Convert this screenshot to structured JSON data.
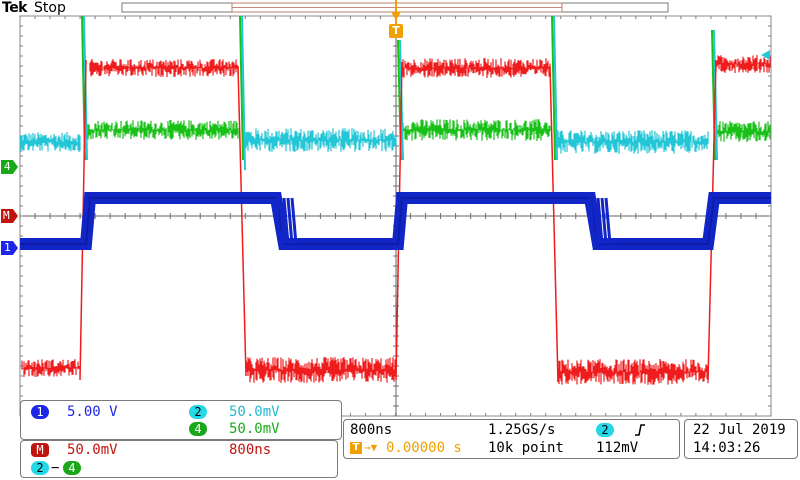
{
  "header": {
    "brand": "Tek",
    "status": "Stop"
  },
  "channel_markers": {
    "ch4": "4",
    "math": "M",
    "ch1": "1"
  },
  "trigger_marker": "T",
  "channels": {
    "ch1": {
      "id": "1",
      "scale": "5.00 V",
      "color": "#1e27e6"
    },
    "ch2": {
      "id": "2",
      "scale": "50.0mV",
      "color": "#25d8e8"
    },
    "ch4": {
      "id": "4",
      "scale": "50.0mV",
      "color": "#1aa81a"
    },
    "math": {
      "id": "M",
      "scale": "50.0mV",
      "timebase": "800ns",
      "color": "#c0150f",
      "expr_a": "2",
      "expr_op": "−",
      "expr_b": "4"
    }
  },
  "timebase_panel": {
    "horizontal_scale": "800ns",
    "sample_rate": "1.25GS/s",
    "trigger_position": "0.00000 s",
    "record_length": "10k point",
    "trigger_source": "2",
    "trigger_level": "112mV",
    "trigger_slope_icon": "rising-edge-icon"
  },
  "datetime": {
    "date": "22 Jul  2019",
    "time": "14:03:26"
  },
  "colors": {
    "trace_red": "#ee1c1c",
    "trace_green": "#18c018",
    "trace_cyan": "#22c6d6",
    "trace_blue": "#1226c8",
    "grid": "#707070",
    "trigger_orange": "#f0a000"
  }
}
